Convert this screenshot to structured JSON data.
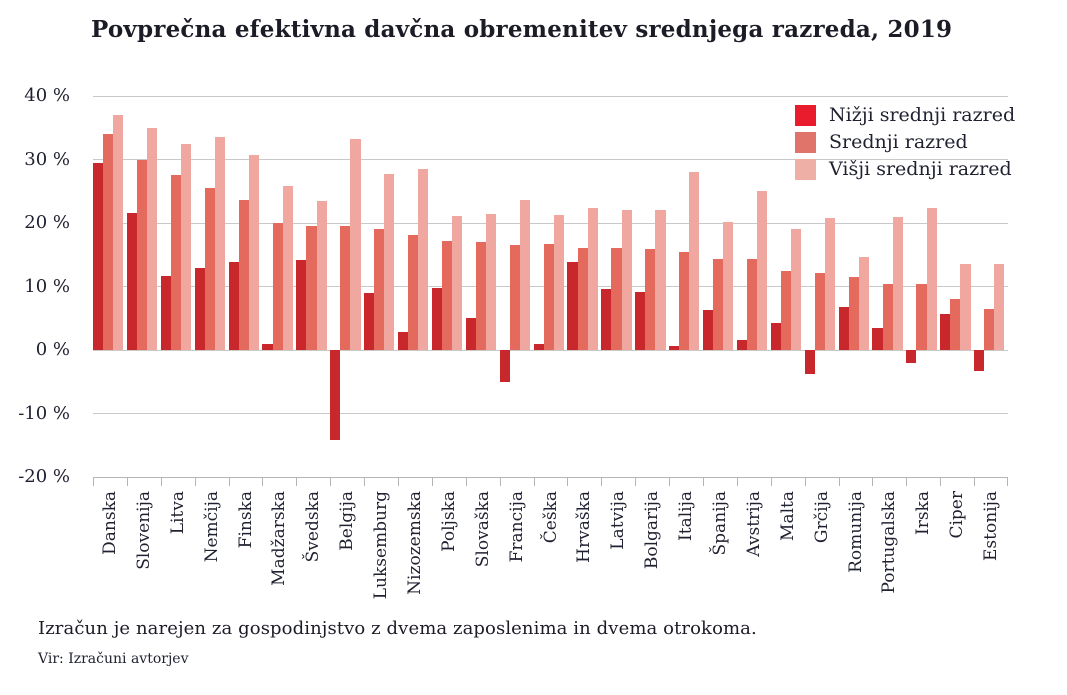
{
  "title": "Povprečna efektivna davčna obremenitev srednjega razreda, 2019",
  "note": "Izračun je narejen za gospodinjstvo z dvema zaposlenima in dvema otrokoma.",
  "source": "Vir: Izračuni avtorjev",
  "colors": {
    "text": "#1f2130",
    "grid": "#c9c9c9",
    "axis": "#b5b5b5",
    "series": [
      "#c8272c",
      "#e56a5e",
      "#efa79f"
    ],
    "legend_swatches": [
      "#e81c2c",
      "#e0736a",
      "#eeafa7"
    ]
  },
  "chart_data": {
    "type": "bar",
    "title": "Povprečna efektivna davčna obremenitev srednjega razreda, 2019",
    "unit": "%",
    "ylim": [
      -20,
      40
    ],
    "grid": true,
    "legend_position": "top-right",
    "y_ticks": [
      {
        "value": 40,
        "label": "40 %"
      },
      {
        "value": 30,
        "label": "30 %"
      },
      {
        "value": 20,
        "label": "20 %"
      },
      {
        "value": 10,
        "label": "10 %"
      },
      {
        "value": 0,
        "label": "0 %"
      },
      {
        "value": -10,
        "label": "-10 %"
      },
      {
        "value": -20,
        "label": "-20 %"
      }
    ],
    "categories": [
      "Danska",
      "Slovenija",
      "Litva",
      "Nemčija",
      "Finska",
      "Madžarska",
      "Švedska",
      "Belgija",
      "Luksemburg",
      "Nizozemska",
      "Poljska",
      "Slovaška",
      "Francija",
      "Češka",
      "Hrvaška",
      "Latvija",
      "Bolgarija",
      "Italija",
      "Španija",
      "Avstrija",
      "Malta",
      "Grčija",
      "Romunija",
      "Portugalska",
      "Irska",
      "Ciper",
      "Estonija"
    ],
    "series": [
      {
        "name": "Nižji srednji razred",
        "values": [
          29.4,
          21.6,
          11.7,
          12.9,
          13.9,
          1.0,
          14.1,
          -14.2,
          9.0,
          2.8,
          9.7,
          5.0,
          -5.0,
          1.0,
          13.9,
          9.6,
          9.2,
          0.6,
          6.3,
          1.5,
          4.2,
          -3.8,
          6.8,
          3.4,
          -2.0,
          5.7,
          -3.3
        ]
      },
      {
        "name": "Srednji razred",
        "values": [
          34.0,
          30.0,
          27.6,
          25.5,
          23.6,
          20.0,
          19.5,
          19.5,
          19.0,
          18.1,
          17.1,
          17.0,
          16.5,
          16.7,
          16.1,
          16.1,
          15.9,
          15.5,
          14.4,
          14.4,
          12.4,
          12.1,
          11.5,
          10.4,
          10.4,
          8.1,
          6.4
        ]
      },
      {
        "name": "Višji srednji razred",
        "values": [
          37.0,
          35.0,
          32.5,
          33.6,
          30.7,
          25.9,
          23.4,
          33.3,
          27.7,
          28.5,
          21.1,
          21.4,
          23.6,
          21.3,
          22.4,
          22.1,
          22.0,
          28.1,
          20.1,
          25.1,
          19.1,
          20.8,
          14.7,
          20.9,
          22.4,
          13.5,
          13.5
        ]
      }
    ]
  }
}
